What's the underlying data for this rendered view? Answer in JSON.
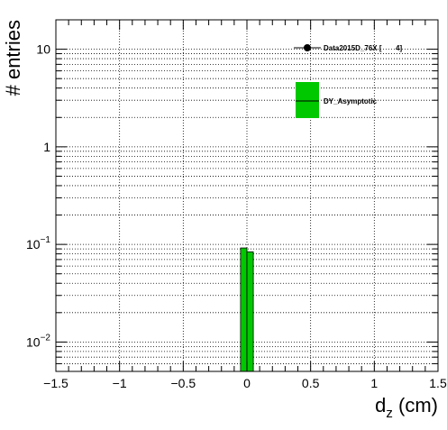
{
  "chart_data": {
    "type": "bar",
    "xlabel_main": "d",
    "xlabel_sub": "z",
    "xlabel_unit": " (cm)",
    "ylabel": "# entries",
    "xlim": [
      -1.5,
      1.5
    ],
    "ylim": [
      0.005,
      20
    ],
    "yscale": "log",
    "grid": true,
    "x_ticks": [
      -1.5,
      -1,
      -0.5,
      0,
      0.5,
      1,
      1.5
    ],
    "x_tick_labels": [
      "−1.5",
      "−1",
      "−0.5",
      "0",
      "0.5",
      "1",
      "1.5"
    ],
    "y_tick_labels": [
      {
        "value": 10,
        "mantissa": "10",
        "exp": ""
      },
      {
        "value": 1,
        "mantissa": "1",
        "exp": ""
      },
      {
        "value": 0.1,
        "mantissa": "10",
        "exp": "−1"
      },
      {
        "value": 0.01,
        "mantissa": "10",
        "exp": "−2"
      }
    ],
    "series": [
      {
        "name": "DY_Asymptotic",
        "kind": "histogram",
        "color": "#00c800",
        "bins": [
          {
            "x0": -0.05,
            "x1": 0.0,
            "value": 0.092
          },
          {
            "x0": 0.0,
            "x1": 0.05,
            "value": 0.084
          }
        ]
      }
    ],
    "legend": {
      "placement": "top-right",
      "entries": [
        {
          "label": "Data2015D_76X [       4]",
          "style": "marker"
        },
        {
          "label": "DY_Asymptotic",
          "style": "box",
          "color": "#00c800"
        }
      ]
    }
  }
}
